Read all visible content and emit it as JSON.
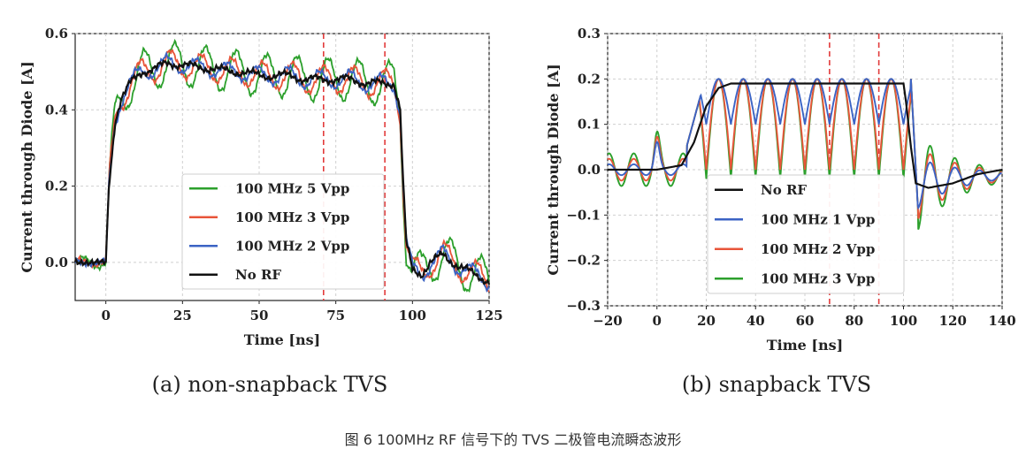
{
  "caption": "图 6 100MHz RF 信号下的 TVS 二极管电流瞬态波形",
  "chart_data": [
    {
      "type": "line",
      "subtitle": "(a)   non-snapback TVS",
      "xlabel": "Time [ns]",
      "ylabel": "Current through Diode [A]",
      "xlim": [
        -10,
        125
      ],
      "ylim": [
        -0.1,
        0.6
      ],
      "xticks": [
        0,
        25,
        50,
        75,
        100,
        125
      ],
      "yticks": [
        0.0,
        0.2,
        0.4,
        0.6
      ],
      "grid": true,
      "legend_position": "lower-right",
      "vlines": [
        71,
        91
      ],
      "x": [
        -10,
        -5,
        0,
        1,
        3,
        5,
        8,
        12,
        16,
        20,
        25,
        30,
        35,
        40,
        45,
        50,
        55,
        60,
        65,
        70,
        75,
        80,
        85,
        90,
        94,
        96,
        97,
        98,
        100,
        103,
        106,
        110,
        115,
        120,
        125
      ],
      "series": [
        {
          "name": "100 MHz 5 Vpp",
          "color": "#2ca02c",
          "amplitude": 0.055,
          "values": [
            0.0,
            0.0,
            0.0,
            0.2,
            0.37,
            0.43,
            0.47,
            0.5,
            0.51,
            0.52,
            0.52,
            0.51,
            0.51,
            0.5,
            0.5,
            0.49,
            0.49,
            0.49,
            0.48,
            0.48,
            0.48,
            0.48,
            0.47,
            0.47,
            0.47,
            0.4,
            0.2,
            0.05,
            -0.02,
            -0.03,
            0.0,
            0.02,
            -0.01,
            -0.03,
            -0.05
          ]
        },
        {
          "name": "100 MHz 3 Vpp",
          "color": "#e8553a",
          "amplitude": 0.035,
          "values": [
            0.0,
            0.0,
            0.0,
            0.2,
            0.37,
            0.43,
            0.47,
            0.5,
            0.51,
            0.52,
            0.52,
            0.51,
            0.51,
            0.5,
            0.5,
            0.49,
            0.49,
            0.49,
            0.48,
            0.48,
            0.48,
            0.48,
            0.47,
            0.47,
            0.47,
            0.4,
            0.2,
            0.05,
            -0.02,
            -0.03,
            0.0,
            0.02,
            -0.01,
            -0.03,
            -0.05
          ]
        },
        {
          "name": "100 MHz 2 Vpp",
          "color": "#3b63c4",
          "amplitude": 0.022,
          "values": [
            0.0,
            0.0,
            0.0,
            0.2,
            0.37,
            0.43,
            0.47,
            0.5,
            0.51,
            0.52,
            0.52,
            0.51,
            0.51,
            0.5,
            0.5,
            0.49,
            0.49,
            0.49,
            0.48,
            0.48,
            0.48,
            0.48,
            0.47,
            0.47,
            0.47,
            0.4,
            0.2,
            0.05,
            -0.02,
            -0.03,
            0.0,
            0.02,
            -0.01,
            -0.03,
            -0.05
          ]
        },
        {
          "name": "No RF",
          "color": "#111111",
          "amplitude": 0.008,
          "values": [
            0.0,
            0.0,
            0.0,
            0.2,
            0.37,
            0.43,
            0.47,
            0.5,
            0.51,
            0.52,
            0.52,
            0.51,
            0.51,
            0.5,
            0.5,
            0.49,
            0.49,
            0.49,
            0.48,
            0.48,
            0.48,
            0.48,
            0.47,
            0.47,
            0.47,
            0.4,
            0.2,
            0.05,
            -0.02,
            -0.03,
            0.0,
            0.02,
            -0.01,
            -0.03,
            -0.05
          ]
        }
      ]
    },
    {
      "type": "line",
      "subtitle": "(b)  snapback TVS",
      "xlabel": "Time [ns]",
      "ylabel": "Current through Diode [A]",
      "xlim": [
        -20,
        140
      ],
      "ylim": [
        -0.3,
        0.3
      ],
      "xticks": [
        -20,
        0,
        20,
        40,
        60,
        80,
        100,
        120,
        140
      ],
      "yticks": [
        -0.3,
        -0.2,
        -0.1,
        0.0,
        0.1,
        0.2,
        0.3
      ],
      "grid": true,
      "legend_position": "lower-left",
      "vlines": [
        70,
        90
      ],
      "series": [
        {
          "name": "No RF",
          "color": "#111111",
          "x": [
            -20,
            -10,
            0,
            10,
            15,
            20,
            25,
            30,
            40,
            60,
            80,
            100,
            101,
            103,
            105,
            110,
            120,
            130,
            140
          ],
          "values": [
            0.0,
            0.0,
            0.0,
            0.01,
            0.06,
            0.14,
            0.18,
            0.19,
            0.19,
            0.19,
            0.19,
            0.19,
            0.15,
            0.05,
            -0.03,
            -0.04,
            -0.03,
            -0.01,
            0.0
          ]
        },
        {
          "name": "100 MHz 1 Vpp",
          "color": "#3b63c4",
          "low": 0.1,
          "high": 0.2
        },
        {
          "name": "100 MHz 2 Vpp",
          "color": "#e8553a",
          "low": 0.0,
          "high": 0.2
        },
        {
          "name": "100 MHz 3 Vpp",
          "color": "#2ca02c",
          "low": -0.02,
          "high": 0.2
        }
      ]
    }
  ]
}
